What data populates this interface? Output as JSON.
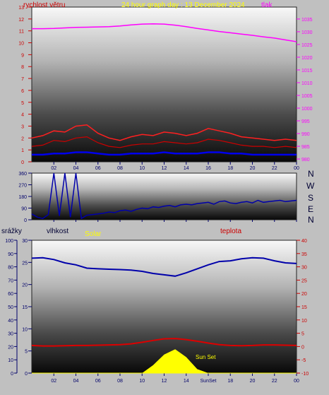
{
  "labels": {
    "wind": "rychlost větru",
    "title": "24 hour graph day : 13 December 2024",
    "pressure": "tlak",
    "rain": "srážky",
    "humidity": "vlhkost",
    "solar": "Solar",
    "temperature": "teplota",
    "sunset": "Sun Set",
    "sunrise_axis": "SunSet",
    "compass": [
      "N",
      "W",
      "S",
      "E",
      "N"
    ]
  },
  "colors": {
    "wind": "#cc0000",
    "gust": "#ff2020",
    "avg_wind": "#0000ee",
    "pressure": "#ff00ff",
    "direction": "#0000aa",
    "humidity": "#0000aa",
    "temperature": "#dd0000",
    "solar": "#ffff00",
    "rain": "#ffff00",
    "title": "#ffff00"
  },
  "chart_data": [
    {
      "type": "line",
      "name": "wind-pressure",
      "x_ticks": [
        "02",
        "04",
        "06",
        "08",
        "10",
        "12",
        "14",
        "16",
        "18",
        "20",
        "22",
        "00"
      ],
      "left_axis": {
        "label": "rychlost větru",
        "ticks": [
          0,
          1,
          2,
          3,
          4,
          5,
          6,
          7,
          8,
          9,
          10,
          11,
          12,
          13
        ],
        "ylim": [
          0,
          13
        ]
      },
      "right_axis": {
        "label": "tlak",
        "ticks": [
          980,
          985,
          990,
          995,
          1000,
          1005,
          1010,
          1015,
          1020,
          1025,
          1030,
          1035
        ],
        "ylim": [
          978.9,
          1039.7
        ]
      },
      "x_hours": [
        0,
        1,
        2,
        3,
        4,
        5,
        6,
        7,
        8,
        9,
        10,
        11,
        12,
        13,
        14,
        15,
        16,
        17,
        18,
        19,
        20,
        21,
        22,
        23,
        24
      ],
      "pressure": [
        1031.2,
        1031.2,
        1031.3,
        1031.5,
        1031.7,
        1031.8,
        1031.9,
        1032.0,
        1032.3,
        1032.7,
        1033.0,
        1033.1,
        1033.0,
        1032.6,
        1032.0,
        1031.3,
        1030.7,
        1030.1,
        1029.6,
        1029.1,
        1028.6,
        1028.0,
        1027.5,
        1026.8,
        1026.1
      ],
      "gust": [
        2.0,
        2.2,
        2.6,
        2.5,
        3.0,
        3.1,
        2.4,
        2.0,
        1.8,
        2.1,
        2.3,
        2.2,
        2.5,
        2.4,
        2.2,
        2.4,
        2.8,
        2.6,
        2.4,
        2.1,
        2.0,
        1.9,
        1.8,
        1.9,
        1.8
      ],
      "wind": [
        1.3,
        1.4,
        1.8,
        1.7,
        2.0,
        2.1,
        1.6,
        1.3,
        1.2,
        1.4,
        1.5,
        1.5,
        1.7,
        1.6,
        1.5,
        1.6,
        1.9,
        1.8,
        1.6,
        1.4,
        1.3,
        1.3,
        1.2,
        1.3,
        1.2
      ],
      "avg_wind": [
        0.6,
        0.6,
        0.7,
        0.7,
        0.8,
        0.8,
        0.7,
        0.6,
        0.6,
        0.7,
        0.7,
        0.7,
        0.8,
        0.7,
        0.7,
        0.7,
        0.8,
        0.8,
        0.7,
        0.7,
        0.6,
        0.6,
        0.6,
        0.6,
        0.6
      ]
    },
    {
      "type": "line",
      "name": "wind-direction",
      "x_ticks": [
        "02",
        "04",
        "06",
        "08",
        "10",
        "12",
        "14",
        "16",
        "18",
        "20",
        "22",
        "00"
      ],
      "left_axis": {
        "ticks": [
          0,
          90,
          180,
          270,
          360
        ],
        "ylim": [
          0,
          360
        ]
      },
      "x_hours": [
        0,
        0.5,
        1,
        1.5,
        2,
        2.5,
        3,
        3.5,
        4,
        4.5,
        5,
        5.5,
        6,
        6.5,
        7,
        7.5,
        8,
        8.5,
        9,
        9.5,
        10,
        10.5,
        11,
        11.5,
        12,
        12.5,
        13,
        13.5,
        14,
        14.5,
        15,
        15.5,
        16,
        16.5,
        17,
        17.5,
        18,
        18.5,
        19,
        19.5,
        20,
        20.5,
        21,
        21.5,
        22,
        22.5,
        23,
        23.5,
        24
      ],
      "direction": [
        45,
        20,
        10,
        40,
        360,
        30,
        360,
        20,
        360,
        10,
        35,
        40,
        45,
        50,
        60,
        55,
        70,
        75,
        65,
        80,
        90,
        85,
        100,
        95,
        105,
        110,
        100,
        115,
        120,
        115,
        125,
        130,
        135,
        120,
        140,
        145,
        130,
        125,
        135,
        140,
        130,
        150,
        135,
        140,
        145,
        150,
        140,
        145,
        150
      ]
    },
    {
      "type": "line",
      "name": "humidity-temperature",
      "x_ticks": [
        "02",
        "04",
        "06",
        "08",
        "10",
        "12",
        "14",
        "SunSet",
        "18",
        "20",
        "22",
        "00"
      ],
      "rain_axis": {
        "label": "srážky",
        "ticks": [
          0,
          10,
          20,
          30,
          40,
          50,
          60,
          70,
          80,
          90,
          100
        ],
        "ylim": [
          0,
          100
        ]
      },
      "humidity_axis": {
        "label": "vlhkost",
        "ticks": [
          0,
          5,
          10,
          15,
          20,
          25,
          30
        ],
        "ylim": [
          0,
          30
        ]
      },
      "temperature_axis": {
        "label": "teplota",
        "ticks": [
          -10,
          -5,
          0,
          5,
          10,
          15,
          20,
          25,
          30,
          35,
          40
        ],
        "ylim": [
          -10,
          40
        ]
      },
      "x_hours": [
        0,
        1,
        2,
        3,
        4,
        5,
        6,
        7,
        8,
        9,
        10,
        11,
        12,
        13,
        14,
        15,
        16,
        17,
        18,
        19,
        20,
        21,
        22,
        23,
        24
      ],
      "humidity": [
        86.5,
        86.8,
        85.5,
        83.0,
        81.5,
        79.0,
        78.5,
        78.2,
        77.9,
        77.5,
        76.6,
        75.0,
        74.0,
        73.0,
        75.5,
        78.5,
        81.5,
        84.0,
        84.5,
        86.0,
        86.8,
        86.5,
        84.5,
        83.0,
        82.5
      ],
      "temperature": [
        0.4,
        0.2,
        0.2,
        0.3,
        0.4,
        0.4,
        0.5,
        0.6,
        0.7,
        1.0,
        1.6,
        2.3,
        2.9,
        3.0,
        2.6,
        2.0,
        1.3,
        0.7,
        0.4,
        0.3,
        0.4,
        0.6,
        0.6,
        0.5,
        0.4
      ],
      "solar": [
        0,
        0,
        0,
        0,
        0,
        0,
        0,
        0,
        0,
        0,
        0,
        6,
        14,
        18,
        12,
        3,
        0,
        0,
        0,
        0,
        0,
        0,
        0,
        0,
        0
      ],
      "rain": [
        0,
        0,
        0,
        0,
        0,
        0,
        0,
        0,
        0,
        0,
        0,
        0,
        0,
        0,
        0,
        0,
        0,
        0,
        0,
        0,
        0,
        0,
        0,
        0,
        0
      ]
    }
  ]
}
